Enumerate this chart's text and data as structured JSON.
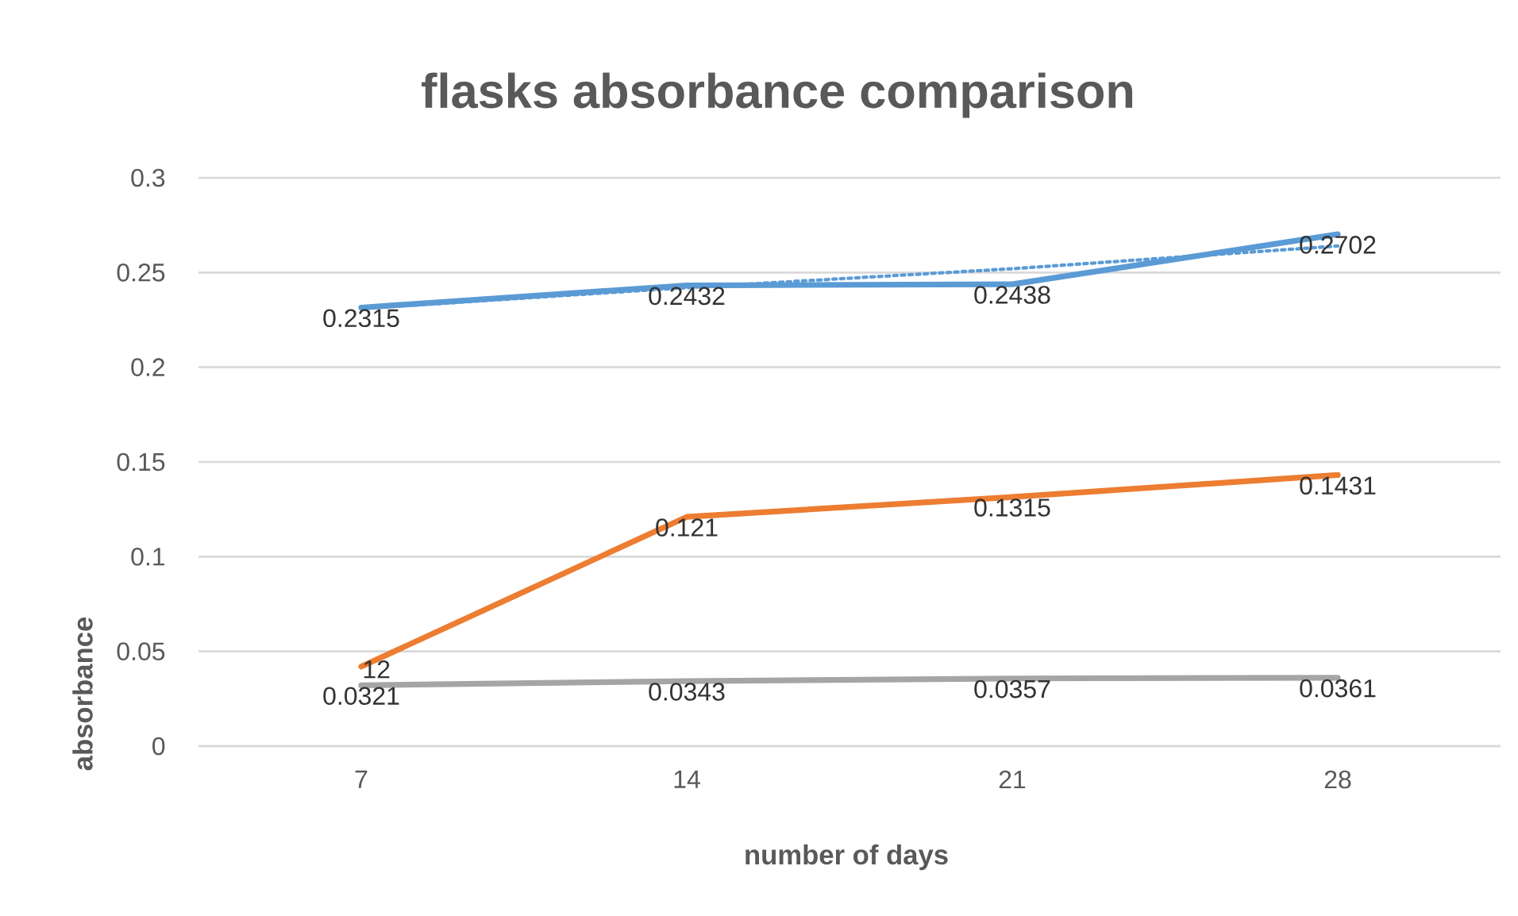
{
  "chart_data": {
    "type": "line",
    "title": "flasks absorbance comparison",
    "xlabel": "number of days",
    "ylabel": "absorbance",
    "categories": [
      "7",
      "14",
      "21",
      "28"
    ],
    "series": [
      {
        "color": "#5b9bd5",
        "values": [
          0.2315,
          0.2432,
          0.2438,
          0.2702
        ],
        "value_labels": [
          "0.2315",
          "0.2432",
          "0.2438",
          "0.2702"
        ]
      },
      {
        "color": "#ed7d31",
        "values": [
          0.042,
          0.121,
          0.1315,
          0.1431
        ],
        "value_labels": [
          null,
          "0.121",
          "0.1315",
          "0.1431"
        ]
      },
      {
        "color": "#a5a5a5",
        "values": [
          0.0321,
          0.0343,
          0.0357,
          0.0361
        ],
        "value_labels": [
          "0.0321",
          "0.0343",
          "0.0357",
          "0.0361"
        ]
      },
      {
        "type": "line",
        "color": "#5b9bd5",
        "line_style": "dotted",
        "values": [
          0.231,
          0.242,
          0.252,
          0.264
        ]
      }
    ],
    "annotations": [
      {
        "text": "12",
        "x": "7",
        "y": 0.042
      }
    ],
    "ylim": [
      0,
      0.3
    ],
    "yticks": [
      0,
      0.05,
      0.1,
      0.15,
      0.2,
      0.25,
      0.3
    ],
    "grid": "y"
  }
}
